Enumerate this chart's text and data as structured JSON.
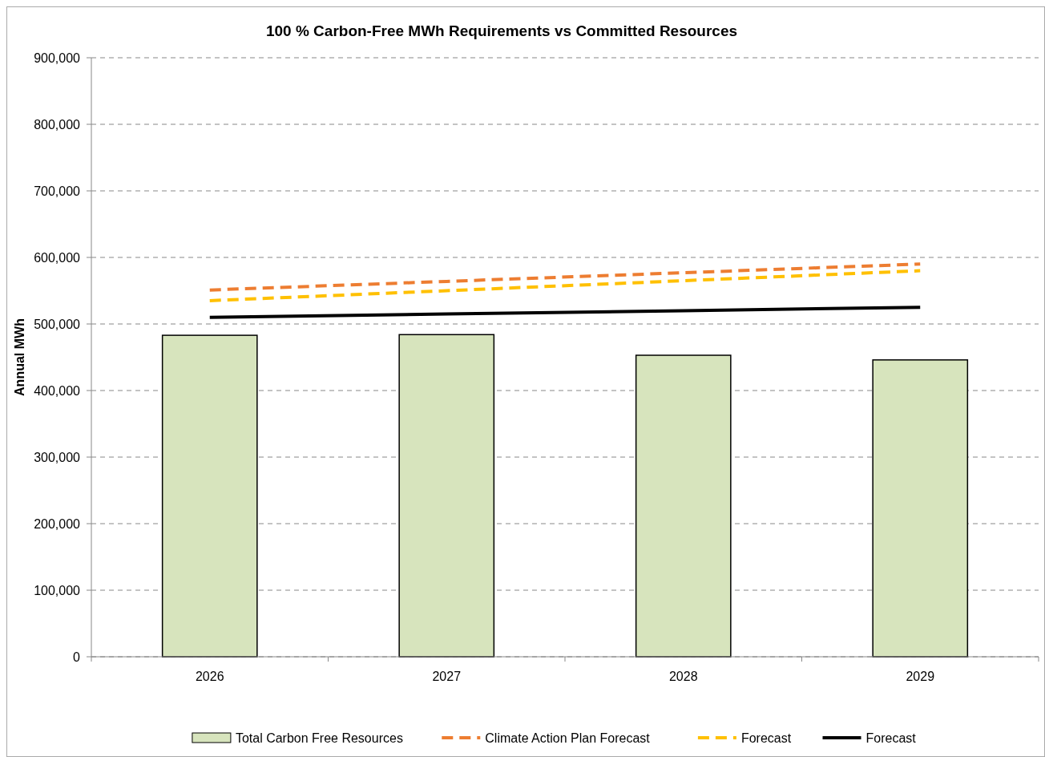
{
  "chart_data": {
    "type": "bar",
    "title": "100 % Carbon-Free MWh Requirements vs Committed Resources",
    "ylabel": "Annual MWh",
    "categories": [
      "2026",
      "2027",
      "2028",
      "2029"
    ],
    "series": [
      {
        "name": "Total Carbon Free Resources",
        "color": "#d7e4bd",
        "values": [
          483000,
          484000,
          453000,
          446000
        ]
      },
      {
        "name": "Climate Action Plan Forecast",
        "type": "line",
        "color": "#ed7d31",
        "line_style": "dashed",
        "values": [
          551000,
          564000,
          577000,
          590000
        ]
      },
      {
        "name": "Forecast",
        "type": "line",
        "color": "#ffc000",
        "line_style": "dashed",
        "values": [
          535000,
          550000,
          565000,
          580000
        ]
      },
      {
        "name": "Forecast",
        "type": "line",
        "color": "#000000",
        "line_style": "solid",
        "values": [
          510000,
          515000,
          520000,
          525000
        ]
      }
    ],
    "ylim": [
      0,
      900000
    ],
    "yticks": [
      {
        "value": 0,
        "label": "0"
      },
      {
        "value": 100000,
        "label": "100,000"
      },
      {
        "value": 200000,
        "label": "200,000"
      },
      {
        "value": 300000,
        "label": "300,000"
      },
      {
        "value": 400000,
        "label": "400,000"
      },
      {
        "value": 500000,
        "label": "500,000"
      },
      {
        "value": 600000,
        "label": "600,000"
      },
      {
        "value": 700000,
        "label": "700,000"
      },
      {
        "value": 800000,
        "label": "800,000"
      },
      {
        "value": 900000,
        "label": "900,000"
      }
    ],
    "grid": "y",
    "legend": "bottom"
  }
}
